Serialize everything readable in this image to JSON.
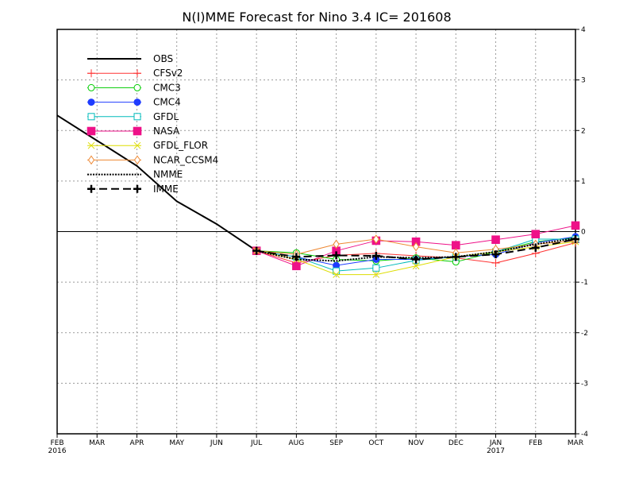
{
  "chart_data": {
    "type": "line",
    "title": "N(I)MME Forecast for Nino 3.4  IC= 201608",
    "x_labels": [
      [
        "FEB",
        "2016"
      ],
      [
        "MAR",
        ""
      ],
      [
        "APR",
        ""
      ],
      [
        "MAY",
        ""
      ],
      [
        "JUN",
        ""
      ],
      [
        "JUL",
        ""
      ],
      [
        "AUG",
        ""
      ],
      [
        "SEP",
        ""
      ],
      [
        "OCT",
        ""
      ],
      [
        "NOV",
        ""
      ],
      [
        "DEC",
        ""
      ],
      [
        "JAN",
        "2017"
      ],
      [
        "FEB",
        ""
      ],
      [
        "MAR",
        ""
      ]
    ],
    "ylim": [
      -4,
      4
    ],
    "yticks": [
      4,
      3,
      2,
      1,
      0,
      -1,
      -2,
      -3,
      -4
    ],
    "grid": true,
    "legend_position": "top-left",
    "series": [
      {
        "name": "OBS",
        "color": "#000000",
        "marker": "none",
        "dash": "solid",
        "width": 2,
        "x": [
          0,
          1,
          2,
          3,
          4,
          5
        ],
        "values": [
          2.3,
          1.8,
          1.3,
          0.6,
          0.15,
          -0.38
        ]
      },
      {
        "name": "CFSv2",
        "color": "#ff3333",
        "marker": "plus-thin",
        "dash": "solid",
        "width": 1,
        "x": [
          5,
          6,
          7,
          8,
          9,
          10,
          11,
          12,
          13
        ],
        "values": [
          -0.38,
          -0.62,
          -0.47,
          -0.43,
          -0.48,
          -0.52,
          -0.62,
          -0.43,
          -0.22
        ]
      },
      {
        "name": "CMC3",
        "color": "#00cc00",
        "marker": "circle-open",
        "dash": "solid",
        "width": 1,
        "x": [
          5,
          6,
          7,
          8,
          9,
          10,
          11,
          12,
          13
        ],
        "values": [
          -0.38,
          -0.42,
          -0.55,
          -0.58,
          -0.52,
          -0.6,
          -0.4,
          -0.2,
          -0.12
        ]
      },
      {
        "name": "CMC4",
        "color": "#1f3cff",
        "marker": "circle-filled",
        "dash": "solid",
        "width": 1,
        "x": [
          5,
          6,
          7,
          8,
          9,
          10,
          11,
          12,
          13
        ],
        "values": [
          -0.38,
          -0.5,
          -0.67,
          -0.55,
          -0.55,
          -0.5,
          -0.45,
          -0.22,
          -0.1
        ]
      },
      {
        "name": "GFDL",
        "color": "#00bbbb",
        "marker": "square-open",
        "dash": "solid",
        "width": 1,
        "x": [
          5,
          6,
          7,
          8,
          9,
          10,
          11,
          12,
          13
        ],
        "values": [
          -0.38,
          -0.5,
          -0.78,
          -0.72,
          -0.57,
          -0.5,
          -0.4,
          -0.15,
          -0.15
        ]
      },
      {
        "name": "NASA",
        "color": "#ee1188",
        "marker": "square-filled",
        "dash": "solid",
        "width": 1,
        "x": [
          5,
          6,
          7,
          8,
          9,
          10,
          11,
          12,
          13
        ],
        "values": [
          -0.38,
          -0.68,
          -0.38,
          -0.18,
          -0.2,
          -0.27,
          -0.16,
          -0.05,
          0.12
        ]
      },
      {
        "name": "GFDL_FLOR",
        "color": "#dddd00",
        "marker": "x",
        "dash": "solid",
        "width": 1,
        "x": [
          5,
          6,
          7,
          8,
          9,
          10,
          11,
          12,
          13
        ],
        "values": [
          -0.38,
          -0.55,
          -0.85,
          -0.85,
          -0.68,
          -0.5,
          -0.4,
          -0.3,
          -0.2
        ]
      },
      {
        "name": "NCAR_CCSM4",
        "color": "#ee8833",
        "marker": "diamond-open",
        "dash": "solid",
        "width": 1,
        "x": [
          5,
          6,
          7,
          8,
          9,
          10,
          11,
          12,
          13
        ],
        "values": [
          -0.38,
          -0.45,
          -0.25,
          -0.15,
          -0.3,
          -0.42,
          -0.35,
          -0.25,
          -0.18
        ]
      },
      {
        "name": "NMME",
        "color": "#000000",
        "marker": "none",
        "dash": "dotted",
        "width": 2,
        "x": [
          5,
          6,
          7,
          8,
          9,
          10,
          11,
          12,
          13
        ],
        "values": [
          -0.38,
          -0.55,
          -0.58,
          -0.5,
          -0.52,
          -0.5,
          -0.4,
          -0.25,
          -0.13
        ]
      },
      {
        "name": "IMME",
        "color": "#000000",
        "marker": "plus-bold",
        "dash": "dashed",
        "width": 2,
        "x": [
          5,
          6,
          7,
          8,
          9,
          10,
          11,
          12,
          13
        ],
        "values": [
          -0.38,
          -0.5,
          -0.47,
          -0.48,
          -0.55,
          -0.5,
          -0.45,
          -0.32,
          -0.15
        ]
      }
    ]
  }
}
